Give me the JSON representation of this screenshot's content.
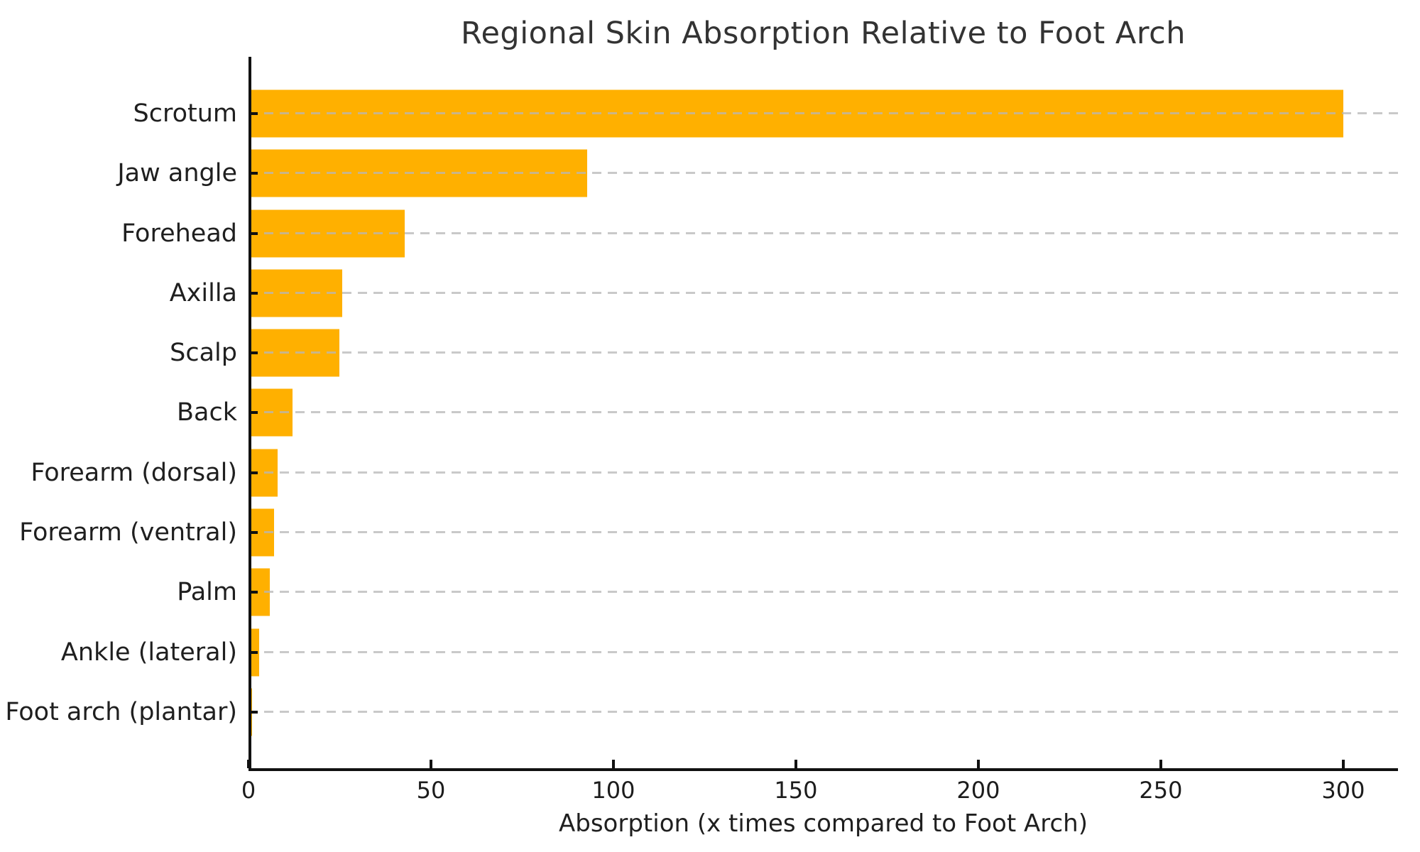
{
  "chart_data": {
    "type": "bar",
    "orientation": "horizontal",
    "title": "Regional Skin Absorption Relative to Foot Arch",
    "xlabel": "Absorption (x times compared to Foot Arch)",
    "ylabel": "",
    "categories": [
      "Scrotum",
      "Jaw angle",
      "Forehead",
      "Axilla",
      "Scalp",
      "Back",
      "Forearm (dorsal)",
      "Forearm (ventral)",
      "Palm",
      "Ankle (lateral)",
      "Foot arch (plantar)"
    ],
    "values": [
      300,
      92.9,
      42.9,
      25.7,
      25.0,
      12.1,
      7.9,
      7.1,
      5.9,
      3.0,
      1.0
    ],
    "xlim": [
      0,
      315
    ],
    "xticks": [
      0,
      50,
      100,
      150,
      200,
      250,
      300
    ],
    "bar_color": "#FFB000",
    "gridline_color": "#c9c9c9",
    "grid_style": "dashed horizontal",
    "legend": "none",
    "background": "#ffffff",
    "axis_color": "#111111",
    "text_color": "#1f1f1f",
    "title_color": "#333333"
  }
}
